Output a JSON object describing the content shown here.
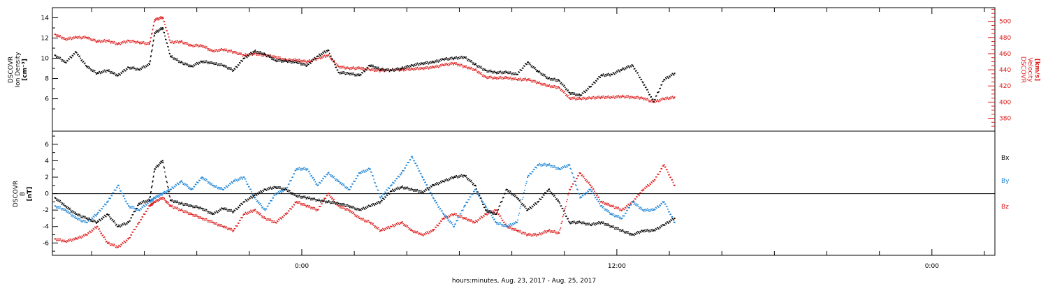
{
  "colors": {
    "black": "#000000",
    "red": "#dd1a1a",
    "blue": "#1a84d8"
  },
  "top_panel": {
    "left_label": [
      "DSCOVR",
      "Ion Density",
      "[cm⁻³]"
    ],
    "right_label": [
      "DSCOVR",
      "Velocity",
      "[km/s]"
    ]
  },
  "bottom_panel": {
    "left_label": [
      "DSCOVR",
      "B",
      "[nT]"
    ],
    "legend": [
      "Bx",
      "By",
      "Bz"
    ]
  },
  "xaxis": {
    "title": "hours:minutes, Aug. 23, 2017 - Aug. 25, 2017",
    "tick_labels": [
      "0:00",
      "12:00",
      "0:00"
    ]
  },
  "chart_data": [
    {
      "type": "scatter",
      "panel": "top",
      "x_unit": "hours from 0:00 Aug 24, 2017",
      "xlim": [
        -9.5,
        26.4
      ],
      "ylim_left": [
        2.8,
        15
      ],
      "ylim_right": [
        364,
        517
      ],
      "left_ticks": [
        6,
        8,
        10,
        12,
        14
      ],
      "right_ticks": [
        380,
        400,
        420,
        440,
        460,
        480,
        500
      ],
      "grid": false,
      "series": [
        {
          "name": "Ion Density",
          "axis": "left",
          "color": "black",
          "x": [
            -9.4,
            -9.0,
            -8.6,
            -8.2,
            -7.8,
            -7.4,
            -7.0,
            -6.6,
            -6.2,
            -5.8,
            -5.6,
            -5.3,
            -5.0,
            -4.6,
            -4.2,
            -3.8,
            -3.4,
            -3.0,
            -2.6,
            -2.2,
            -1.8,
            -1.4,
            -1.0,
            -0.6,
            -0.2,
            0.2,
            0.6,
            1.0,
            1.4,
            1.8,
            2.2,
            2.6,
            3.0,
            3.4,
            3.8,
            4.2,
            4.6,
            5.0,
            5.4,
            5.8,
            6.2,
            6.6,
            7.0,
            7.4,
            7.8,
            8.2,
            8.6,
            9.0,
            9.4,
            9.8,
            10.2,
            10.6,
            11.0,
            11.4,
            11.8,
            12.2,
            12.6,
            13.0,
            13.4,
            13.8,
            14.2
          ],
          "y": [
            10.3,
            9.6,
            10.6,
            9.2,
            8.5,
            8.8,
            8.3,
            9.1,
            8.9,
            9.4,
            12.5,
            13.0,
            10.2,
            9.6,
            9.2,
            9.7,
            9.5,
            9.3,
            8.8,
            10.0,
            10.7,
            10.4,
            9.8,
            9.7,
            9.6,
            9.3,
            10.2,
            10.8,
            8.6,
            8.5,
            8.3,
            9.3,
            8.9,
            8.8,
            9.0,
            9.3,
            9.5,
            9.6,
            9.9,
            10.0,
            10.1,
            9.4,
            8.8,
            8.6,
            8.6,
            8.4,
            9.6,
            8.7,
            8.0,
            7.8,
            6.6,
            6.3,
            7.2,
            8.3,
            8.4,
            8.9,
            9.3,
            7.6,
            5.7,
            7.9,
            8.5
          ]
        },
        {
          "name": "Velocity",
          "axis": "right",
          "color": "red",
          "x": [
            -9.4,
            -9.0,
            -8.6,
            -8.2,
            -7.8,
            -7.4,
            -7.0,
            -6.6,
            -6.2,
            -5.8,
            -5.6,
            -5.3,
            -5.0,
            -4.6,
            -4.2,
            -3.8,
            -3.4,
            -3.0,
            -2.6,
            -2.2,
            -1.8,
            -1.4,
            -1.0,
            -0.6,
            -0.2,
            0.2,
            0.6,
            1.0,
            1.4,
            1.8,
            2.2,
            2.6,
            3.0,
            3.4,
            3.8,
            4.2,
            4.6,
            5.0,
            5.4,
            5.8,
            6.2,
            6.6,
            7.0,
            7.4,
            7.8,
            8.2,
            8.6,
            9.0,
            9.4,
            9.8,
            10.2,
            10.6,
            11.0,
            11.4,
            11.8,
            12.2,
            12.6,
            13.0,
            13.4,
            13.8,
            14.2
          ],
          "y": [
            484,
            478,
            480,
            480,
            475,
            476,
            472,
            476,
            474,
            472,
            502,
            505,
            474,
            475,
            470,
            470,
            463,
            465,
            462,
            458,
            460,
            458,
            456,
            452,
            452,
            450,
            454,
            458,
            444,
            442,
            442,
            440,
            439,
            440,
            440,
            441,
            442,
            443,
            446,
            448,
            444,
            440,
            431,
            430,
            430,
            428,
            428,
            424,
            420,
            418,
            405,
            404,
            405,
            406,
            406,
            407,
            406,
            405,
            400,
            404,
            406
          ]
        }
      ]
    },
    {
      "type": "scatter",
      "panel": "bottom",
      "x_unit": "hours from 0:00 Aug 24, 2017",
      "xlim": [
        -9.5,
        26.4
      ],
      "ylim": [
        -7.5,
        7.6
      ],
      "ticks": [
        -6,
        -4,
        -2,
        0,
        2,
        4,
        6
      ],
      "zero_line": true,
      "grid": false,
      "series": [
        {
          "name": "Bx",
          "color": "black",
          "x": [
            -9.4,
            -9.0,
            -8.6,
            -8.2,
            -7.8,
            -7.4,
            -7.0,
            -6.6,
            -6.2,
            -5.8,
            -5.6,
            -5.3,
            -5.0,
            -4.6,
            -4.2,
            -3.8,
            -3.4,
            -3.0,
            -2.6,
            -2.2,
            -1.8,
            -1.4,
            -1.0,
            -0.6,
            -0.2,
            0.2,
            0.6,
            1.0,
            1.4,
            1.8,
            2.2,
            2.6,
            3.0,
            3.4,
            3.8,
            4.2,
            4.6,
            5.0,
            5.4,
            5.8,
            6.2,
            6.6,
            7.0,
            7.4,
            7.8,
            8.2,
            8.6,
            9.0,
            9.4,
            9.8,
            10.2,
            10.6,
            11.0,
            11.4,
            11.8,
            12.2,
            12.6,
            13.0,
            13.4,
            13.8,
            14.2
          ],
          "y": [
            -0.5,
            -1.5,
            -2.5,
            -3.0,
            -3.5,
            -2.5,
            -4.0,
            -3.5,
            -1.2,
            -0.8,
            3.0,
            4.0,
            -0.8,
            -1.2,
            -1.5,
            -1.8,
            -2.5,
            -1.8,
            -2.2,
            -1.0,
            -0.2,
            0.5,
            0.8,
            0.5,
            -0.3,
            -0.5,
            -0.8,
            -1.0,
            -1.2,
            -1.5,
            -2.0,
            -1.5,
            -1.0,
            0.3,
            0.8,
            0.5,
            0.2,
            1.0,
            1.5,
            2.0,
            2.2,
            1.0,
            -2.0,
            -2.5,
            0.5,
            -0.5,
            -2.0,
            -1.0,
            0.5,
            -1.0,
            -3.5,
            -3.5,
            -3.8,
            -3.5,
            -4.0,
            -4.5,
            -5.0,
            -4.5,
            -4.5,
            -3.8,
            -3.0
          ]
        },
        {
          "name": "By",
          "color": "blue",
          "x": [
            -9.4,
            -9.0,
            -8.6,
            -8.2,
            -7.8,
            -7.4,
            -7.0,
            -6.6,
            -6.2,
            -5.8,
            -5.6,
            -5.3,
            -5.0,
            -4.6,
            -4.2,
            -3.8,
            -3.4,
            -3.0,
            -2.6,
            -2.2,
            -1.8,
            -1.4,
            -1.0,
            -0.6,
            -0.2,
            0.2,
            0.6,
            1.0,
            1.4,
            1.8,
            2.2,
            2.6,
            3.0,
            3.4,
            3.8,
            4.2,
            4.6,
            5.0,
            5.4,
            5.8,
            6.2,
            6.6,
            7.0,
            7.4,
            7.8,
            8.2,
            8.6,
            9.0,
            9.4,
            9.8,
            10.2,
            10.6,
            11.0,
            11.4,
            11.8,
            12.2,
            12.6,
            13.0,
            13.4,
            13.8,
            14.2
          ],
          "y": [
            -1.5,
            -2.0,
            -3.0,
            -3.5,
            -2.5,
            -1.0,
            1.0,
            -1.5,
            -2.0,
            -1.0,
            -0.5,
            0.0,
            0.5,
            1.5,
            0.5,
            2.0,
            1.0,
            0.5,
            1.5,
            2.0,
            -0.5,
            -2.0,
            0.0,
            0.5,
            3.0,
            3.0,
            1.0,
            2.5,
            1.5,
            0.5,
            2.5,
            3.0,
            -0.5,
            1.0,
            2.5,
            4.5,
            2.0,
            -0.5,
            -2.5,
            -4.0,
            -1.5,
            0.5,
            -1.5,
            -3.5,
            -4.0,
            -3.5,
            2.0,
            3.5,
            3.5,
            3.0,
            3.5,
            -0.5,
            0.5,
            -1.5,
            -2.5,
            -3.0,
            -1.0,
            -2.0,
            -2.0,
            -1.0,
            -3.5
          ]
        },
        {
          "name": "Bz",
          "color": "red",
          "x": [
            -9.4,
            -9.0,
            -8.6,
            -8.2,
            -7.8,
            -7.4,
            -7.0,
            -6.6,
            -6.2,
            -5.8,
            -5.6,
            -5.3,
            -5.0,
            -4.6,
            -4.2,
            -3.8,
            -3.4,
            -3.0,
            -2.6,
            -2.2,
            -1.8,
            -1.4,
            -1.0,
            -0.6,
            -0.2,
            0.2,
            0.6,
            1.0,
            1.4,
            1.8,
            2.2,
            2.6,
            3.0,
            3.4,
            3.8,
            4.2,
            4.6,
            5.0,
            5.4,
            5.8,
            6.2,
            6.6,
            7.0,
            7.4,
            7.8,
            8.2,
            8.6,
            9.0,
            9.4,
            9.8,
            10.2,
            10.6,
            11.0,
            11.4,
            11.8,
            12.2,
            12.6,
            13.0,
            13.4,
            13.8,
            14.2
          ],
          "y": [
            -5.5,
            -5.8,
            -5.5,
            -5.0,
            -4.0,
            -6.0,
            -6.5,
            -5.5,
            -3.5,
            -1.5,
            -1.0,
            -0.5,
            -1.5,
            -2.0,
            -2.5,
            -3.0,
            -3.5,
            -4.0,
            -4.5,
            -2.5,
            -2.0,
            -3.0,
            -3.5,
            -2.5,
            -1.0,
            -1.5,
            -2.0,
            0.0,
            -1.5,
            -2.0,
            -3.0,
            -3.5,
            -4.5,
            -4.0,
            -3.5,
            -4.5,
            -5.0,
            -4.5,
            -3.0,
            -2.5,
            -3.0,
            -3.5,
            -2.5,
            -2.0,
            -4.0,
            -4.5,
            -5.0,
            -5.0,
            -4.5,
            -4.8,
            0.5,
            2.5,
            1.0,
            -1.0,
            -1.5,
            -2.0,
            -1.0,
            0.5,
            1.5,
            3.5,
            1.0
          ]
        }
      ]
    }
  ]
}
